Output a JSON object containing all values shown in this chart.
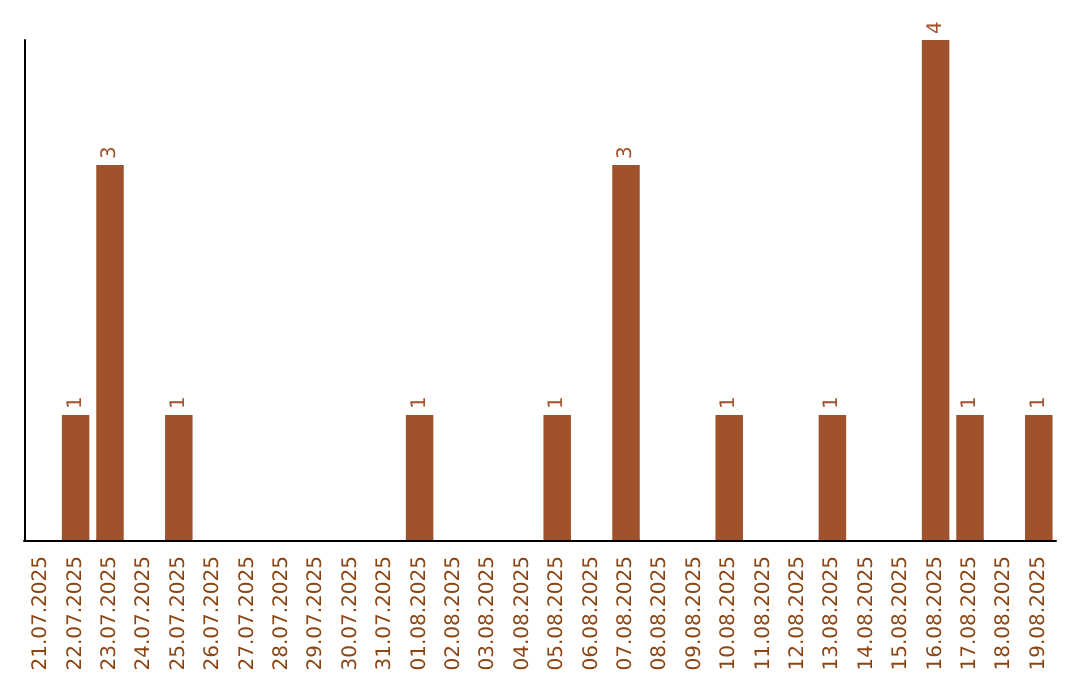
{
  "chart_data": {
    "type": "bar",
    "categories": [
      "21.07.2025",
      "22.07.2025",
      "23.07.2025",
      "24.07.2025",
      "25.07.2025",
      "26.07.2025",
      "27.07.2025",
      "28.07.2025",
      "29.07.2025",
      "30.07.2025",
      "31.07.2025",
      "01.08.2025",
      "02.08.2025",
      "03.08.2025",
      "04.08.2025",
      "05.08.2025",
      "06.08.2025",
      "07.08.2025",
      "08.08.2025",
      "09.08.2025",
      "10.08.2025",
      "11.08.2025",
      "12.08.2025",
      "13.08.2025",
      "14.08.2025",
      "15.08.2025",
      "16.08.2025",
      "17.08.2025",
      "18.08.2025",
      "19.08.2025"
    ],
    "values": [
      0,
      1,
      3,
      0,
      1,
      0,
      0,
      0,
      0,
      0,
      0,
      1,
      0,
      0,
      0,
      1,
      0,
      3,
      0,
      0,
      1,
      0,
      0,
      1,
      0,
      0,
      4,
      1,
      0,
      1
    ],
    "value_labels": [
      null,
      "1",
      "3",
      null,
      "1",
      null,
      null,
      null,
      null,
      null,
      null,
      "1",
      null,
      null,
      null,
      "1",
      null,
      "3",
      null,
      null,
      "1",
      null,
      null,
      "1",
      null,
      null,
      "4",
      "1",
      null,
      "1"
    ],
    "color": "#a0522d",
    "tick_labels": "x"
  }
}
